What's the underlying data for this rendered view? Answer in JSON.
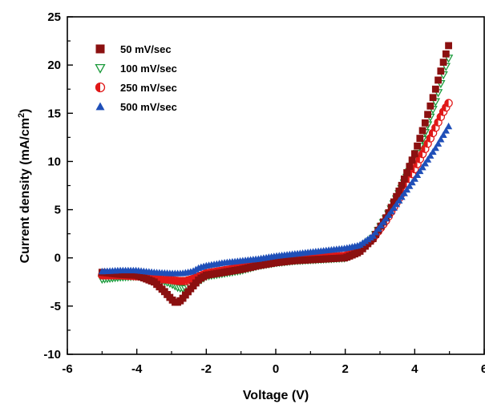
{
  "chart_data": {
    "type": "scatter",
    "xlabel": "Voltage (V)",
    "ylabel": "Current density (mA/cm",
    "ylabel_sup": "2",
    "ylabel_tail": ")",
    "xlim": [
      -6,
      6
    ],
    "ylim": [
      -10,
      25
    ],
    "xticks": [
      -6,
      -4,
      -2,
      0,
      2,
      4,
      6
    ],
    "yticks": [
      -10,
      -5,
      0,
      5,
      10,
      15,
      20,
      25
    ],
    "grid": false,
    "legend_position": "top-left",
    "series": [
      {
        "name": "50 mV/sec",
        "marker": "square-filled",
        "color": "#8b1010",
        "x": [
          -5.0,
          -4.5,
          -4.0,
          -3.5,
          -3.2,
          -3.0,
          -2.9,
          -2.8,
          -2.7,
          -2.5,
          -2.2,
          -2.0,
          -1.5,
          -1.0,
          -0.5,
          0.0,
          0.5,
          1.0,
          1.5,
          2.0,
          2.4,
          2.8,
          3.2,
          3.6,
          4.0,
          4.3,
          4.6,
          4.8,
          5.0
        ],
        "y": [
          -1.5,
          -1.7,
          -1.8,
          -2.5,
          -3.5,
          -4.3,
          -4.6,
          -4.6,
          -4.3,
          -3.4,
          -2.2,
          -1.8,
          -1.5,
          -1.2,
          -0.8,
          -0.5,
          -0.3,
          -0.2,
          -0.1,
          0.0,
          0.6,
          2.0,
          4.3,
          7.3,
          10.8,
          14.0,
          17.5,
          20.0,
          22.3
        ]
      },
      {
        "name": "100 mV/sec",
        "marker": "triangle-down-open",
        "color": "#1a9a3a",
        "x": [
          -5.0,
          -4.5,
          -4.0,
          -3.5,
          -3.0,
          -2.8,
          -2.6,
          -2.4,
          -2.2,
          -2.0,
          -1.5,
          -1.0,
          -0.5,
          0.0,
          0.5,
          1.0,
          1.5,
          2.0,
          2.4,
          2.8,
          3.2,
          3.6,
          4.0,
          4.3,
          4.6,
          4.8,
          5.0
        ],
        "y": [
          -2.2,
          -2.0,
          -1.9,
          -2.0,
          -2.7,
          -3.1,
          -3.2,
          -2.9,
          -2.4,
          -1.9,
          -1.6,
          -1.3,
          -0.8,
          -0.5,
          -0.3,
          -0.2,
          -0.1,
          0.0,
          0.7,
          2.0,
          4.2,
          7.0,
          10.1,
          13.0,
          16.2,
          18.7,
          21.0
        ]
      },
      {
        "name": "250 mV/sec",
        "marker": "circle-half",
        "color": "#e01818",
        "x": [
          -5.0,
          -4.5,
          -4.0,
          -3.5,
          -3.0,
          -2.8,
          -2.6,
          -2.4,
          -2.2,
          -2.0,
          -1.5,
          -1.0,
          -0.5,
          0.0,
          0.5,
          1.0,
          1.5,
          2.0,
          2.4,
          2.8,
          3.2,
          3.6,
          4.0,
          4.3,
          4.6,
          4.8,
          5.0
        ],
        "y": [
          -1.8,
          -1.8,
          -1.9,
          -2.1,
          -2.3,
          -2.4,
          -2.4,
          -2.2,
          -1.9,
          -1.6,
          -1.3,
          -1.0,
          -0.6,
          -0.3,
          -0.1,
          0.0,
          0.1,
          0.2,
          0.8,
          2.0,
          4.0,
          6.5,
          9.2,
          11.3,
          13.5,
          15.0,
          16.2
        ]
      },
      {
        "name": "500 mV/sec",
        "marker": "triangle-up-filled",
        "color": "#1f4fb8",
        "x": [
          -5.0,
          -4.5,
          -4.0,
          -3.5,
          -3.0,
          -2.7,
          -2.4,
          -2.2,
          -2.0,
          -1.5,
          -1.0,
          -0.5,
          0.0,
          0.5,
          1.0,
          1.5,
          2.0,
          2.4,
          2.8,
          3.2,
          3.6,
          4.0,
          4.3,
          4.6,
          4.8,
          5.0
        ],
        "y": [
          -1.4,
          -1.3,
          -1.3,
          -1.5,
          -1.6,
          -1.6,
          -1.4,
          -1.0,
          -0.8,
          -0.5,
          -0.3,
          -0.1,
          0.2,
          0.4,
          0.6,
          0.8,
          1.0,
          1.3,
          2.3,
          4.2,
          6.2,
          8.2,
          9.8,
          11.4,
          12.6,
          13.8
        ]
      }
    ]
  }
}
